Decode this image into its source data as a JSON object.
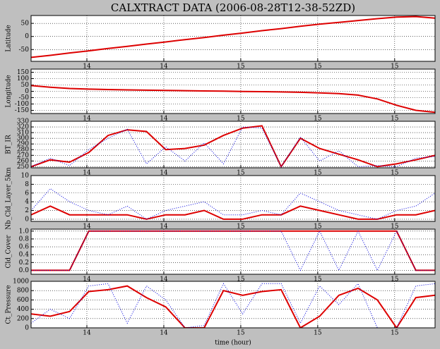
{
  "chart_data": [
    {
      "type": "line",
      "title": "CALXTRACT DATA (2006-08-28T12-38-52ZD)",
      "ylabel": "Latitude",
      "x": [
        13.51,
        13.61,
        13.71,
        13.81,
        13.91,
        14.01,
        14.11,
        14.21,
        14.31,
        14.41,
        14.51,
        14.61,
        14.71,
        14.81,
        14.91,
        15.01,
        15.11,
        15.21,
        15.31,
        15.41,
        15.51,
        15.61
      ],
      "xlim": [
        13.51,
        15.61
      ],
      "xticks": [
        {
          "value": 13.8,
          "label": "14"
        },
        {
          "value": 14.2,
          "label": "14"
        },
        {
          "value": 14.6,
          "label": "15"
        },
        {
          "value": 15.0,
          "label": "15"
        },
        {
          "value": 15.4,
          "label": "15"
        }
      ],
      "ylim": [
        -95,
        80
      ],
      "yticks": [
        -50,
        0,
        50
      ],
      "grid": true,
      "series": [
        {
          "color": "#dd0000",
          "values": [
            -80,
            -72,
            -63,
            -55,
            -46,
            -38,
            -29,
            -21,
            -12,
            -4,
            5,
            13,
            22,
            30,
            39,
            47,
            54,
            61,
            68,
            74,
            76,
            70
          ]
        }
      ]
    },
    {
      "type": "line",
      "ylabel": "Longitude",
      "x": [
        13.51,
        13.61,
        13.71,
        13.81,
        13.91,
        14.01,
        14.11,
        14.21,
        14.31,
        14.41,
        14.51,
        14.61,
        14.71,
        14.81,
        14.91,
        15.01,
        15.11,
        15.21,
        15.31,
        15.41,
        15.51,
        15.61
      ],
      "xlim": [
        13.51,
        15.61
      ],
      "xticks": [
        {
          "value": 13.8,
          "label": "14"
        },
        {
          "value": 14.2,
          "label": "14"
        },
        {
          "value": 14.6,
          "label": "15"
        },
        {
          "value": 15.0,
          "label": "15"
        },
        {
          "value": 15.4,
          "label": "15"
        }
      ],
      "ylim": [
        -175,
        175
      ],
      "yticks": [
        -150,
        -100,
        -50,
        0,
        50,
        100,
        150
      ],
      "grid": true,
      "series": [
        {
          "color": "#dd0000",
          "values": [
            45,
            32,
            22,
            17,
            14,
            11,
            9,
            7,
            5,
            3,
            1,
            -1,
            -3,
            -5,
            -8,
            -12,
            -18,
            -30,
            -60,
            -110,
            -150,
            -165
          ]
        }
      ]
    },
    {
      "type": "line",
      "ylabel": "BT_IR",
      "x": [
        13.51,
        13.61,
        13.71,
        13.81,
        13.91,
        14.01,
        14.11,
        14.21,
        14.31,
        14.41,
        14.51,
        14.61,
        14.71,
        14.81,
        14.91,
        15.01,
        15.11,
        15.21,
        15.31,
        15.41,
        15.51,
        15.61
      ],
      "xlim": [
        13.51,
        15.61
      ],
      "xticks": [
        {
          "value": 13.8,
          "label": "14"
        },
        {
          "value": 14.2,
          "label": "14"
        },
        {
          "value": 14.6,
          "label": "15"
        },
        {
          "value": 15.0,
          "label": "15"
        },
        {
          "value": 15.4,
          "label": "15"
        }
      ],
      "ylim": [
        248,
        330
      ],
      "yticks": [
        250,
        260,
        270,
        280,
        290,
        300,
        310,
        320,
        330
      ],
      "grid": true,
      "series": [
        {
          "color": "#dd0000",
          "values": [
            250,
            262,
            258,
            275,
            305,
            315,
            312,
            280,
            282,
            288,
            305,
            318,
            322,
            250,
            300,
            282,
            272,
            262,
            250,
            255,
            262,
            270
          ]
        },
        {
          "color": "#0000dd",
          "values": [
            250,
            265,
            252,
            280,
            300,
            316,
            255,
            285,
            260,
            292,
            255,
            320,
            318,
            250,
            302,
            260,
            278,
            250,
            252,
            250,
            265,
            268
          ]
        }
      ]
    },
    {
      "type": "line",
      "ylabel": "Nb_Cld_Layer_5km",
      "x": [
        13.51,
        13.61,
        13.71,
        13.81,
        13.91,
        14.01,
        14.11,
        14.21,
        14.31,
        14.41,
        14.51,
        14.61,
        14.71,
        14.81,
        14.91,
        15.01,
        15.11,
        15.21,
        15.31,
        15.41,
        15.51,
        15.61
      ],
      "xlim": [
        13.51,
        15.61
      ],
      "xticks": [
        {
          "value": 13.8,
          "label": "14"
        },
        {
          "value": 14.2,
          "label": "14"
        },
        {
          "value": 14.6,
          "label": "15"
        },
        {
          "value": 15.0,
          "label": "15"
        },
        {
          "value": 15.4,
          "label": "15"
        }
      ],
      "ylim": [
        -0.5,
        10
      ],
      "yticks": [
        0,
        2,
        4,
        6,
        8,
        10
      ],
      "grid": true,
      "series": [
        {
          "color": "#dd0000",
          "values": [
            1,
            3,
            1,
            1,
            1,
            1,
            0,
            1,
            1,
            2,
            0,
            0,
            1,
            1,
            3,
            2,
            1,
            0,
            0,
            1,
            1,
            2
          ]
        },
        {
          "color": "#0000dd",
          "values": [
            2,
            7,
            4,
            2,
            1,
            3,
            0,
            2,
            3,
            4,
            1,
            1,
            2,
            1,
            6,
            4,
            2,
            1,
            0,
            2,
            3,
            6
          ]
        }
      ]
    },
    {
      "type": "line",
      "ylabel": "Cld_Cover",
      "x": [
        13.51,
        13.61,
        13.71,
        13.81,
        13.91,
        14.01,
        14.11,
        14.21,
        14.31,
        14.41,
        14.51,
        14.61,
        14.71,
        14.81,
        14.91,
        15.01,
        15.11,
        15.21,
        15.31,
        15.41,
        15.51,
        15.61
      ],
      "xlim": [
        13.51,
        15.61
      ],
      "xticks": [
        {
          "value": 13.8,
          "label": "14"
        },
        {
          "value": 14.2,
          "label": "14"
        },
        {
          "value": 14.6,
          "label": "15"
        },
        {
          "value": 15.0,
          "label": "15"
        },
        {
          "value": 15.4,
          "label": "15"
        }
      ],
      "ylim": [
        -0.1,
        1.05
      ],
      "yticks": [
        {
          "value": 0,
          "label": "0.0"
        },
        0.2,
        0.4,
        0.6,
        0.8,
        {
          "value": 1,
          "label": "1.0"
        }
      ],
      "grid": true,
      "series": [
        {
          "color": "#dd0000",
          "values": [
            0,
            0,
            0,
            1,
            1,
            1,
            1,
            1,
            1,
            1,
            1,
            1,
            1,
            1,
            1,
            1,
            1,
            1,
            1,
            1,
            0,
            0
          ]
        },
        {
          "color": "#0000dd",
          "values": [
            0,
            0,
            0,
            1,
            1,
            1,
            1,
            1,
            1,
            1,
            1,
            1,
            1,
            1,
            0,
            1,
            0,
            1,
            0,
            1,
            0,
            0
          ]
        }
      ]
    },
    {
      "type": "line",
      "ylabel": "Ct_Pressure",
      "xlabel": "time (hour)",
      "x": [
        13.51,
        13.61,
        13.71,
        13.81,
        13.91,
        14.01,
        14.11,
        14.21,
        14.31,
        14.41,
        14.51,
        14.61,
        14.71,
        14.81,
        14.91,
        15.01,
        15.11,
        15.21,
        15.31,
        15.41,
        15.51,
        15.61
      ],
      "xlim": [
        13.51,
        15.61
      ],
      "xticks": [
        {
          "value": 13.8,
          "label": "14"
        },
        {
          "value": 14.2,
          "label": "14"
        },
        {
          "value": 14.6,
          "label": "15"
        },
        {
          "value": 15.0,
          "label": "15"
        },
        {
          "value": 15.4,
          "label": "15"
        }
      ],
      "ylim": [
        0,
        1000
      ],
      "yticks": [
        0,
        200,
        400,
        600,
        800,
        1000
      ],
      "grid": true,
      "series": [
        {
          "color": "#dd0000",
          "values": [
            300,
            250,
            350,
            780,
            820,
            900,
            650,
            450,
            0,
            0,
            800,
            700,
            780,
            820,
            0,
            250,
            700,
            850,
            600,
            0,
            650,
            700
          ]
        },
        {
          "color": "#0000dd",
          "values": [
            100,
            400,
            200,
            900,
            950,
            100,
            900,
            600,
            0,
            50,
            950,
            300,
            950,
            950,
            100,
            900,
            500,
            950,
            0,
            0,
            900,
            950
          ]
        }
      ]
    }
  ]
}
